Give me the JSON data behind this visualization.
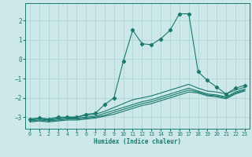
{
  "title": "",
  "xlabel": "Humidex (Indice chaleur)",
  "ylabel": "",
  "bg_color": "#cce8e8",
  "grid_color": "#b0d4d4",
  "line_color": "#1a7a6e",
  "xlim": [
    -0.5,
    23.5
  ],
  "ylim": [
    -3.6,
    2.9
  ],
  "xticks": [
    0,
    1,
    2,
    3,
    4,
    5,
    6,
    7,
    8,
    9,
    10,
    11,
    12,
    13,
    14,
    15,
    16,
    17,
    18,
    19,
    20,
    21,
    22,
    23
  ],
  "yticks": [
    -3,
    -2,
    -1,
    0,
    1,
    2
  ],
  "main_x": [
    0,
    1,
    2,
    3,
    4,
    5,
    6,
    7,
    8,
    9,
    10,
    11,
    12,
    13,
    14,
    15,
    16,
    17,
    18,
    19,
    20,
    21,
    22,
    23
  ],
  "main_y": [
    -3.1,
    -3.05,
    -3.1,
    -3.0,
    -3.0,
    -3.0,
    -2.85,
    -2.8,
    -2.35,
    -2.0,
    -0.1,
    1.5,
    0.8,
    0.75,
    1.05,
    1.5,
    2.35,
    2.35,
    -0.65,
    -1.1,
    -1.45,
    -1.8,
    -1.5,
    -1.35
  ],
  "line2_x": [
    0,
    1,
    2,
    3,
    4,
    5,
    6,
    7,
    8,
    9,
    10,
    11,
    12,
    13,
    14,
    15,
    16,
    17,
    18,
    19,
    20,
    21,
    22,
    23
  ],
  "line2_y": [
    -3.1,
    -3.05,
    -3.1,
    -3.05,
    -3.0,
    -3.0,
    -2.9,
    -2.85,
    -2.7,
    -2.5,
    -2.3,
    -2.1,
    -2.0,
    -1.9,
    -1.75,
    -1.6,
    -1.45,
    -1.3,
    -1.5,
    -1.65,
    -1.7,
    -1.8,
    -1.6,
    -1.45
  ],
  "line3_x": [
    0,
    1,
    2,
    3,
    4,
    5,
    6,
    7,
    8,
    9,
    10,
    11,
    12,
    13,
    14,
    15,
    16,
    17,
    18,
    19,
    20,
    21,
    22,
    23
  ],
  "line3_y": [
    -3.15,
    -3.1,
    -3.15,
    -3.1,
    -3.05,
    -3.05,
    -3.0,
    -2.95,
    -2.8,
    -2.65,
    -2.5,
    -2.35,
    -2.2,
    -2.1,
    -1.95,
    -1.8,
    -1.65,
    -1.5,
    -1.65,
    -1.8,
    -1.85,
    -1.95,
    -1.7,
    -1.55
  ],
  "line4_x": [
    0,
    1,
    2,
    3,
    4,
    5,
    6,
    7,
    8,
    9,
    10,
    11,
    12,
    13,
    14,
    15,
    16,
    17,
    18,
    19,
    20,
    21,
    22,
    23
  ],
  "line4_y": [
    -3.2,
    -3.15,
    -3.2,
    -3.15,
    -3.1,
    -3.1,
    -3.05,
    -3.0,
    -2.9,
    -2.75,
    -2.6,
    -2.45,
    -2.3,
    -2.2,
    -2.05,
    -1.9,
    -1.75,
    -1.6,
    -1.7,
    -1.85,
    -1.9,
    -2.0,
    -1.75,
    -1.6
  ],
  "line5_x": [
    0,
    1,
    2,
    3,
    4,
    5,
    6,
    7,
    8,
    9,
    10,
    11,
    12,
    13,
    14,
    15,
    16,
    17,
    18,
    19,
    20,
    21,
    22,
    23
  ],
  "line5_y": [
    -3.25,
    -3.2,
    -3.25,
    -3.2,
    -3.15,
    -3.15,
    -3.1,
    -3.05,
    -2.95,
    -2.85,
    -2.7,
    -2.55,
    -2.4,
    -2.3,
    -2.15,
    -2.0,
    -1.85,
    -1.7,
    -1.75,
    -1.9,
    -1.95,
    -2.05,
    -1.8,
    -1.65
  ]
}
